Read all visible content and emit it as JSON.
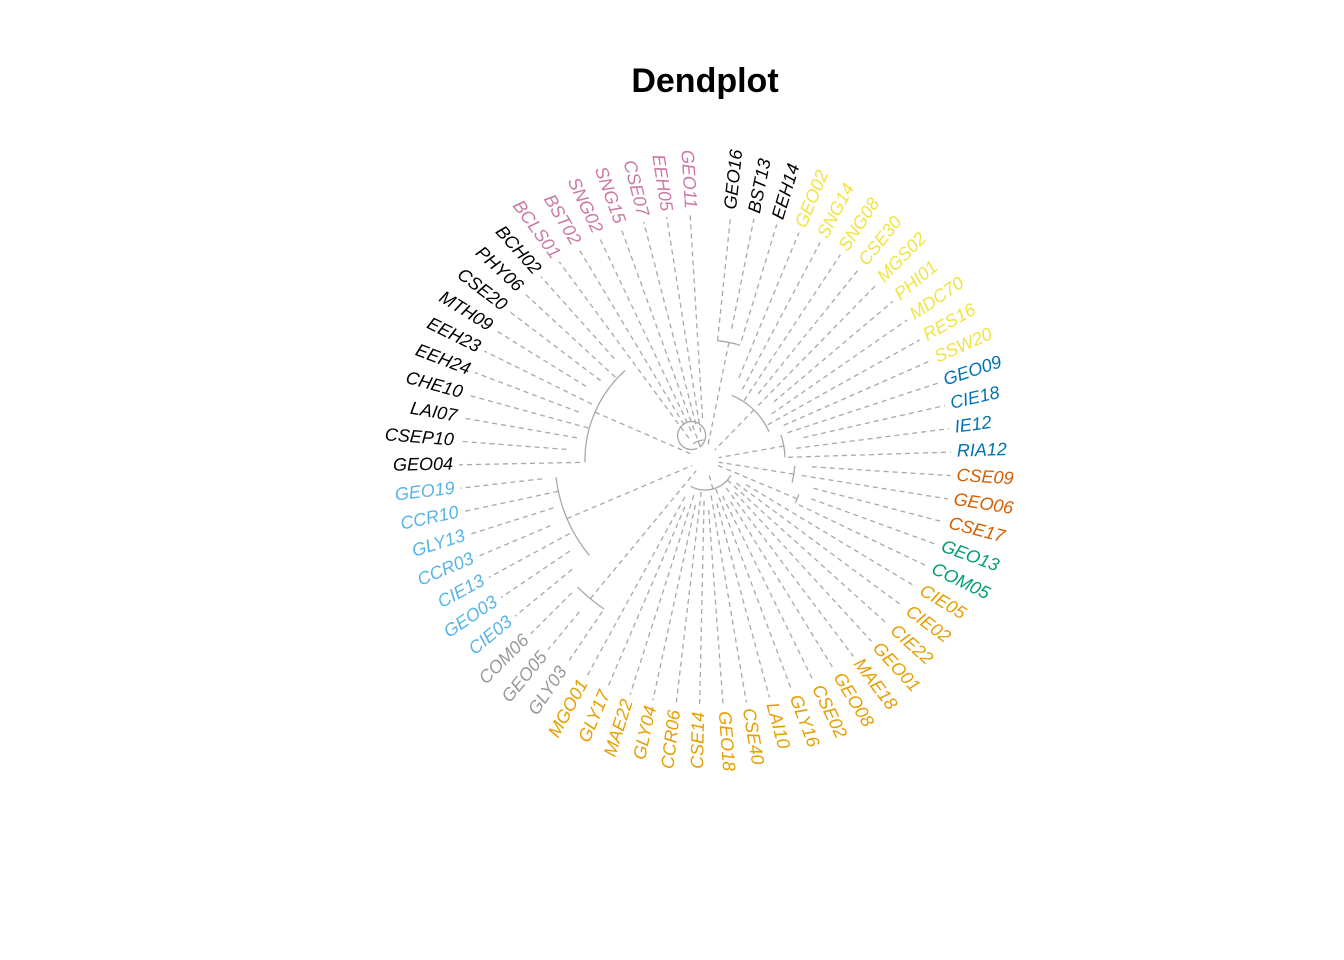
{
  "title": "Dendplot",
  "colors": {
    "black": "#000000",
    "pink": "#cc79a7",
    "yellow": "#f0e442",
    "blue": "#0072b2",
    "vermillion": "#d55e00",
    "green": "#009e73",
    "orange": "#e69f00",
    "grey": "#999999",
    "skyblue": "#56b4e9",
    "branch": "#a8a8a8"
  },
  "leaves": [
    {
      "label": "GEO16",
      "color": "black"
    },
    {
      "label": "BST13",
      "color": "black"
    },
    {
      "label": "EEH14",
      "color": "black"
    },
    {
      "label": "GEO02",
      "color": "yellow"
    },
    {
      "label": "SNG14",
      "color": "yellow"
    },
    {
      "label": "SNG08",
      "color": "yellow"
    },
    {
      "label": "CSE30",
      "color": "yellow"
    },
    {
      "label": "MGS02",
      "color": "yellow"
    },
    {
      "label": "PHI01",
      "color": "yellow"
    },
    {
      "label": "MDC70",
      "color": "yellow"
    },
    {
      "label": "RES16",
      "color": "yellow"
    },
    {
      "label": "SSW20",
      "color": "yellow"
    },
    {
      "label": "GEO09",
      "color": "blue"
    },
    {
      "label": "CIE18",
      "color": "blue"
    },
    {
      "label": "IE12",
      "color": "blue"
    },
    {
      "label": "RIA12",
      "color": "blue"
    },
    {
      "label": "CSE09",
      "color": "vermillion"
    },
    {
      "label": "GEO06",
      "color": "vermillion"
    },
    {
      "label": "CSE17",
      "color": "vermillion"
    },
    {
      "label": "GEO13",
      "color": "green"
    },
    {
      "label": "COM05",
      "color": "green"
    },
    {
      "label": "CIE05",
      "color": "orange"
    },
    {
      "label": "CIE02",
      "color": "orange"
    },
    {
      "label": "CIE22",
      "color": "orange"
    },
    {
      "label": "GEO01",
      "color": "orange"
    },
    {
      "label": "MAE18",
      "color": "orange"
    },
    {
      "label": "GEO08",
      "color": "orange"
    },
    {
      "label": "CSE02",
      "color": "orange"
    },
    {
      "label": "GLY16",
      "color": "orange"
    },
    {
      "label": "LAI10",
      "color": "orange"
    },
    {
      "label": "CSE40",
      "color": "orange"
    },
    {
      "label": "GEO18",
      "color": "orange"
    },
    {
      "label": "CSE14",
      "color": "orange"
    },
    {
      "label": "CCR06",
      "color": "orange"
    },
    {
      "label": "GLY04",
      "color": "orange"
    },
    {
      "label": "MAE22",
      "color": "orange"
    },
    {
      "label": "GLY17",
      "color": "orange"
    },
    {
      "label": "MGO01",
      "color": "orange"
    },
    {
      "label": "GLY03",
      "color": "grey"
    },
    {
      "label": "GEO05",
      "color": "grey"
    },
    {
      "label": "COM06",
      "color": "grey"
    },
    {
      "label": "CIE03",
      "color": "skyblue"
    },
    {
      "label": "GEO03",
      "color": "skyblue"
    },
    {
      "label": "CIE13",
      "color": "skyblue"
    },
    {
      "label": "CCR03",
      "color": "skyblue"
    },
    {
      "label": "GLY13",
      "color": "skyblue"
    },
    {
      "label": "CCR10",
      "color": "skyblue"
    },
    {
      "label": "GEO19",
      "color": "skyblue"
    },
    {
      "label": "GEO04",
      "color": "black"
    },
    {
      "label": "CSEP10",
      "color": "black"
    },
    {
      "label": "LAI07",
      "color": "black"
    },
    {
      "label": "CHE10",
      "color": "black"
    },
    {
      "label": "EEH24",
      "color": "black"
    },
    {
      "label": "EEH23",
      "color": "black"
    },
    {
      "label": "MTH09",
      "color": "black"
    },
    {
      "label": "CSE20",
      "color": "black"
    },
    {
      "label": "PHY06",
      "color": "black"
    },
    {
      "label": "BCH02",
      "color": "black"
    },
    {
      "label": "BCLS01",
      "color": "pink"
    },
    {
      "label": "BST02",
      "color": "pink"
    },
    {
      "label": "SNG02",
      "color": "pink"
    },
    {
      "label": "SNG15",
      "color": "pink"
    },
    {
      "label": "CSE07",
      "color": "pink"
    },
    {
      "label": "EEH05",
      "color": "pink"
    },
    {
      "label": "GEO11",
      "color": "pink"
    }
  ]
}
